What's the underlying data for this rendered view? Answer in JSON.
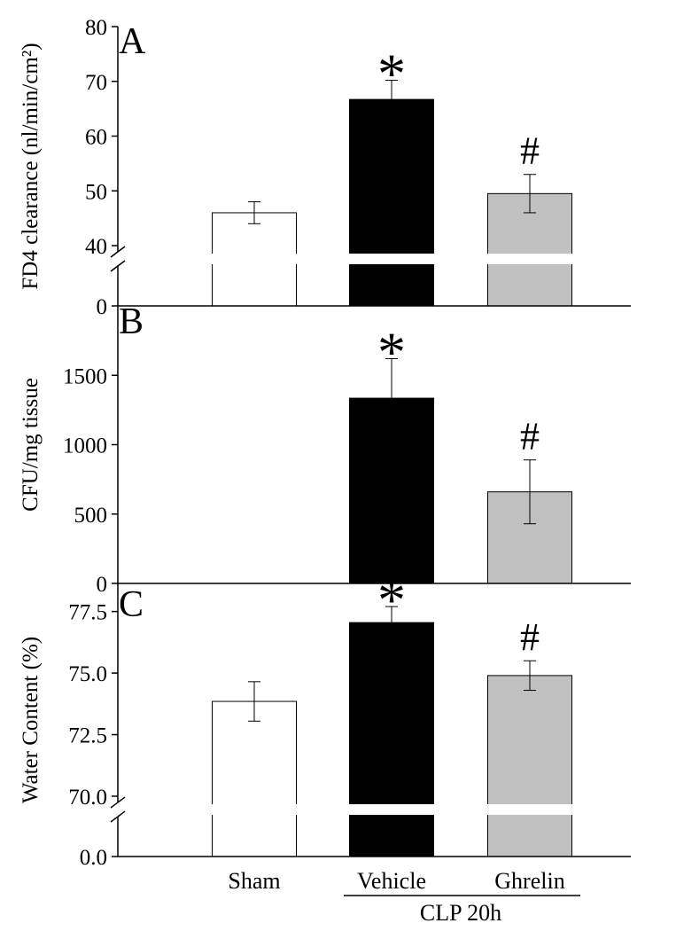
{
  "categories": [
    "Sham",
    "Vehicle",
    "Ghrelin"
  ],
  "group_label": "CLP 20h",
  "colors": {
    "Sham": "#ffffff",
    "Vehicle": "#000000",
    "Ghrelin": "#c0c0c0"
  },
  "chart_data": [
    {
      "type": "bar",
      "panel_letter": "A",
      "ylabel": "FD4 clearance (nl/min/cm²)",
      "ylim": [
        40,
        80
      ],
      "axis_break": true,
      "break_zero_label": "0",
      "yticks": [
        40,
        50,
        60,
        70,
        80
      ],
      "ytick_labels": [
        "40",
        "50",
        "60",
        "70",
        "80"
      ],
      "categories": [
        "Sham",
        "Vehicle",
        "Ghrelin"
      ],
      "values": [
        46.0,
        66.7,
        49.5
      ],
      "errors": [
        2.0,
        3.5,
        3.5
      ],
      "annotations": [
        "",
        "*",
        "#"
      ]
    },
    {
      "type": "bar",
      "panel_letter": "B",
      "ylabel": "CFU/mg tissue",
      "ylim": [
        0,
        2000
      ],
      "axis_break": false,
      "yticks": [
        0,
        500,
        1000,
        1500
      ],
      "ytick_labels": [
        "0",
        "500",
        "1000",
        "1500"
      ],
      "categories": [
        "Sham",
        "Vehicle",
        "Ghrelin"
      ],
      "values": [
        0,
        1335,
        660
      ],
      "errors": [
        0,
        285,
        230
      ],
      "annotations": [
        "",
        "*",
        "#"
      ]
    },
    {
      "type": "bar",
      "panel_letter": "C",
      "ylabel": "Water Content (%)",
      "ylim": [
        70.0,
        79.0
      ],
      "axis_break": true,
      "break_zero_label": "0.0",
      "yticks": [
        70.0,
        72.5,
        75.0,
        77.5
      ],
      "ytick_labels": [
        "70.0",
        "72.5",
        "75.0",
        "77.5"
      ],
      "categories": [
        "Sham",
        "Vehicle",
        "Ghrelin"
      ],
      "values": [
        73.85,
        77.05,
        74.9
      ],
      "errors": [
        0.8,
        0.65,
        0.6
      ],
      "annotations": [
        "",
        "*",
        "#"
      ]
    }
  ]
}
